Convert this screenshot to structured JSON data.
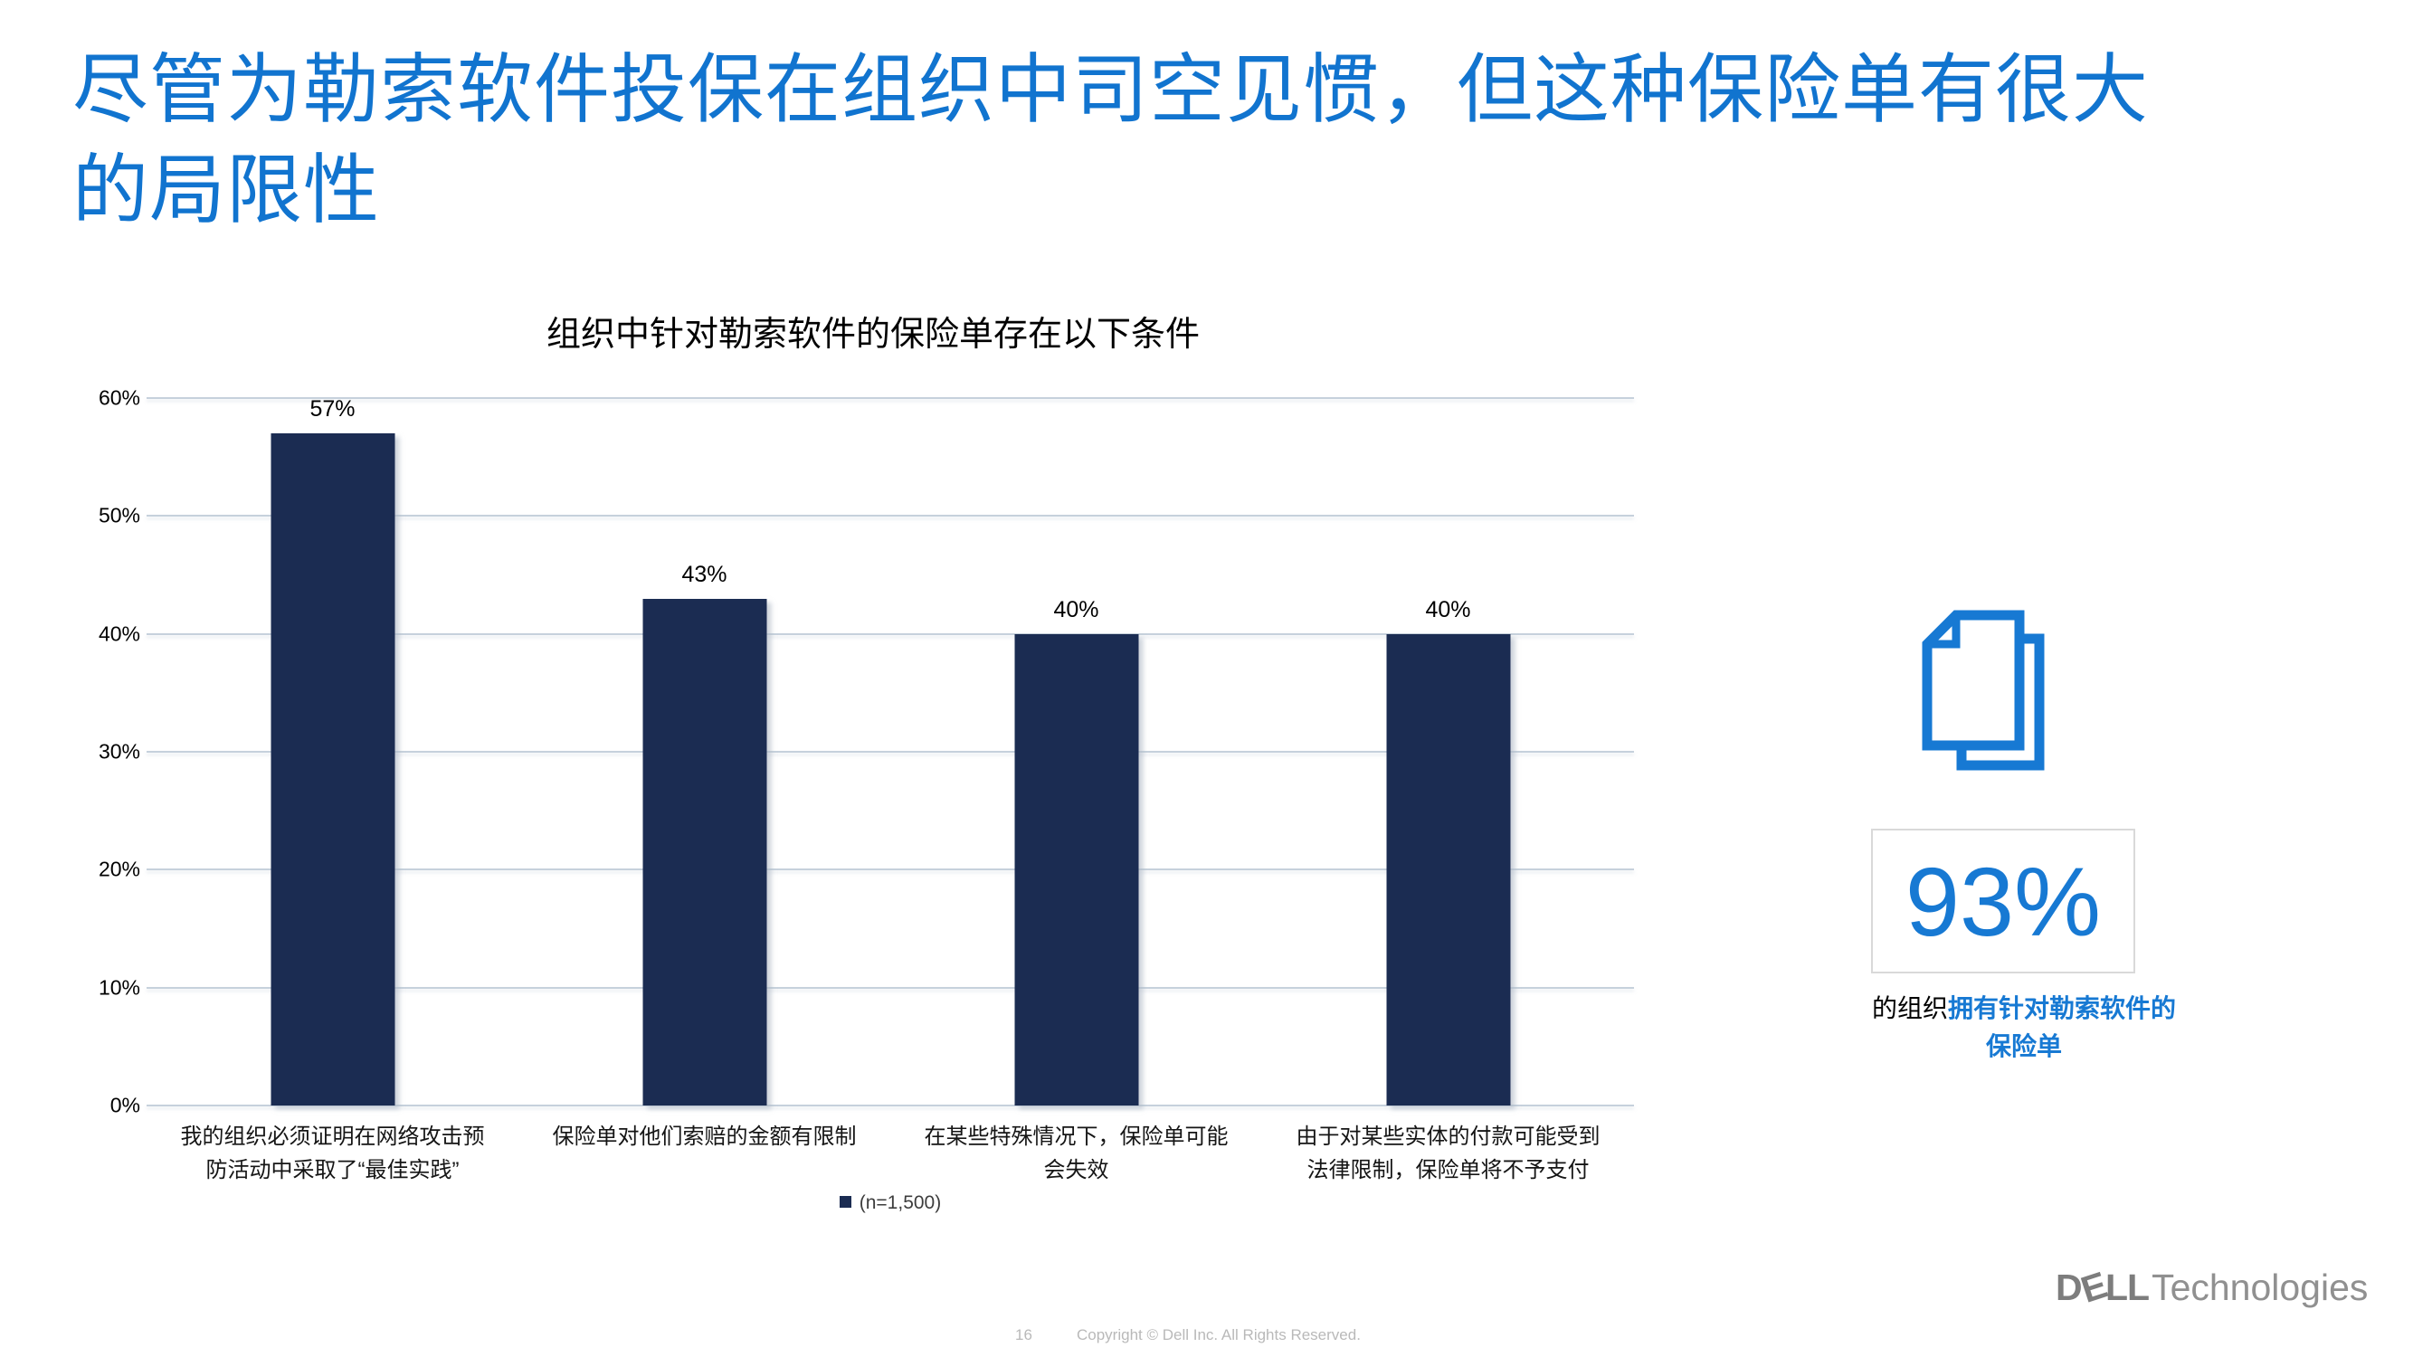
{
  "accent_blue": "#1174cf",
  "icon_blue": "#1779d3",
  "slide": {
    "title_line1": "尽管为勒索软件投保在组织中司空见惯，但这种保险单有很大",
    "title_line2": "的局限性"
  },
  "chart_data": {
    "type": "bar",
    "title": "组织中针对勒索软件的保险单存在以下条件",
    "categories": [
      "我的组织必须证明在网络攻击预防活动中采取了“最佳实践”",
      "保险单对他们索赔的金额有限制",
      "在某些特殊情况下，保险单可能会失效",
      "由于对某些实体的付款可能受到法律限制，保险单将不予支付"
    ],
    "values": [
      57,
      43,
      40,
      40
    ],
    "value_labels": [
      "57%",
      "43%",
      "40%",
      "40%"
    ],
    "ylim": [
      0,
      60
    ],
    "ytick_step": 10,
    "ytick_labels": [
      "0%",
      "10%",
      "20%",
      "30%",
      "40%",
      "50%",
      "60%"
    ],
    "grid": true,
    "legend": "(n=1,500)",
    "legend_position": "bottom",
    "bar_color": "#1b2c52",
    "xlabel": "",
    "ylabel": ""
  },
  "stat": {
    "value": "93%",
    "caption_prefix": "的组织",
    "caption_bold_line1": "拥有针对勒索软件的",
    "caption_bold_line2": "保险单",
    "icon": "documents-icon"
  },
  "footer": {
    "page": "16",
    "copyright": "Copyright © Dell Inc. All Rights Reserved.",
    "brand_letters": [
      "D",
      "E",
      "L",
      "L"
    ],
    "brand_light": "Technologies"
  }
}
